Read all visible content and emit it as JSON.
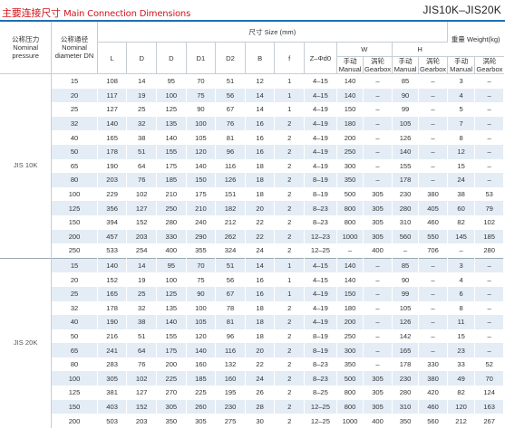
{
  "title": {
    "cn": "主要连接尺寸",
    "en": "Main Connection Dimensions"
  },
  "model": "JIS10K–JIS20K",
  "headers": {
    "pressure": "公称压力 Nominal pressure",
    "diameter": "公称通径 Nominal diameter DN",
    "size": "尺寸 Size (mm)",
    "L": "L",
    "D": "D",
    "D_2": "D",
    "D1": "D1",
    "D2": "D2",
    "B": "B",
    "f": "f",
    "Zd": "Z–Φd0",
    "W": "W",
    "H": "H",
    "weight": "重量 Weight(kg)",
    "manual": "手动 Manual",
    "gearbox": "涡轮 Gearbox"
  },
  "groups": [
    {
      "standard": "JIS 10K",
      "rows": [
        [
          "15",
          "108",
          "14",
          "95",
          "70",
          "51",
          "12",
          "1",
          "4–15",
          "140",
          "–",
          "85",
          "–",
          "3",
          "–"
        ],
        [
          "20",
          "117",
          "19",
          "100",
          "75",
          "56",
          "14",
          "1",
          "4–15",
          "140",
          "–",
          "90",
          "–",
          "4",
          "–"
        ],
        [
          "25",
          "127",
          "25",
          "125",
          "90",
          "67",
          "14",
          "1",
          "4–19",
          "150",
          "–",
          "99",
          "–",
          "5",
          "–"
        ],
        [
          "32",
          "140",
          "32",
          "135",
          "100",
          "76",
          "16",
          "2",
          "4–19",
          "180",
          "–",
          "105",
          "–",
          "7",
          "–"
        ],
        [
          "40",
          "165",
          "38",
          "140",
          "105",
          "81",
          "16",
          "2",
          "4–19",
          "200",
          "–",
          "126",
          "–",
          "8",
          "–"
        ],
        [
          "50",
          "178",
          "51",
          "155",
          "120",
          "96",
          "16",
          "2",
          "4–19",
          "250",
          "–",
          "140",
          "–",
          "12",
          "–"
        ],
        [
          "65",
          "190",
          "64",
          "175",
          "140",
          "116",
          "18",
          "2",
          "4–19",
          "300",
          "–",
          "155",
          "–",
          "15",
          "–"
        ],
        [
          "80",
          "203",
          "76",
          "185",
          "150",
          "126",
          "18",
          "2",
          "8–19",
          "350",
          "–",
          "178",
          "–",
          "24",
          "–"
        ],
        [
          "100",
          "229",
          "102",
          "210",
          "175",
          "151",
          "18",
          "2",
          "8–19",
          "500",
          "305",
          "230",
          "380",
          "38",
          "53"
        ],
        [
          "125",
          "356",
          "127",
          "250",
          "210",
          "182",
          "20",
          "2",
          "8–23",
          "800",
          "305",
          "280",
          "405",
          "60",
          "79"
        ],
        [
          "150",
          "394",
          "152",
          "280",
          "240",
          "212",
          "22",
          "2",
          "8–23",
          "800",
          "305",
          "310",
          "460",
          "82",
          "102"
        ],
        [
          "200",
          "457",
          "203",
          "330",
          "290",
          "262",
          "22",
          "2",
          "12–23",
          "1000",
          "305",
          "560",
          "550",
          "145",
          "185"
        ],
        [
          "250",
          "533",
          "254",
          "400",
          "355",
          "324",
          "24",
          "2",
          "12–25",
          "–",
          "400",
          "–",
          "706",
          "–",
          "280"
        ]
      ]
    },
    {
      "standard": "JIS 20K",
      "rows": [
        [
          "15",
          "140",
          "14",
          "95",
          "70",
          "51",
          "14",
          "1",
          "4–15",
          "140",
          "–",
          "85",
          "–",
          "3",
          "–"
        ],
        [
          "20",
          "152",
          "19",
          "100",
          "75",
          "56",
          "16",
          "1",
          "4–15",
          "140",
          "–",
          "90",
          "–",
          "4",
          "–"
        ],
        [
          "25",
          "165",
          "25",
          "125",
          "90",
          "67",
          "16",
          "1",
          "4–19",
          "150",
          "–",
          "99",
          "–",
          "6",
          "–"
        ],
        [
          "32",
          "178",
          "32",
          "135",
          "100",
          "78",
          "18",
          "2",
          "4–19",
          "180",
          "–",
          "105",
          "–",
          "8",
          "–"
        ],
        [
          "40",
          "190",
          "38",
          "140",
          "105",
          "81",
          "18",
          "2",
          "4–19",
          "200",
          "–",
          "126",
          "–",
          "11",
          "–"
        ],
        [
          "50",
          "216",
          "51",
          "155",
          "120",
          "96",
          "18",
          "2",
          "8–19",
          "250",
          "–",
          "142",
          "–",
          "15",
          "–"
        ],
        [
          "65",
          "241",
          "64",
          "175",
          "140",
          "116",
          "20",
          "2",
          "8–19",
          "300",
          "–",
          "165",
          "–",
          "23",
          "–"
        ],
        [
          "80",
          "283",
          "76",
          "200",
          "160",
          "132",
          "22",
          "2",
          "8–23",
          "350",
          "–",
          "178",
          "330",
          "33",
          "52"
        ],
        [
          "100",
          "305",
          "102",
          "225",
          "185",
          "160",
          "24",
          "2",
          "8–23",
          "500",
          "305",
          "230",
          "380",
          "49",
          "70"
        ],
        [
          "125",
          "381",
          "127",
          "270",
          "225",
          "195",
          "26",
          "2",
          "8–25",
          "800",
          "305",
          "280",
          "420",
          "82",
          "124"
        ],
        [
          "150",
          "403",
          "152",
          "305",
          "260",
          "230",
          "28",
          "2",
          "12–25",
          "800",
          "305",
          "310",
          "460",
          "120",
          "163"
        ],
        [
          "200",
          "503",
          "203",
          "350",
          "305",
          "275",
          "30",
          "2",
          "12–25",
          "1000",
          "400",
          "350",
          "560",
          "212",
          "267"
        ]
      ]
    }
  ]
}
